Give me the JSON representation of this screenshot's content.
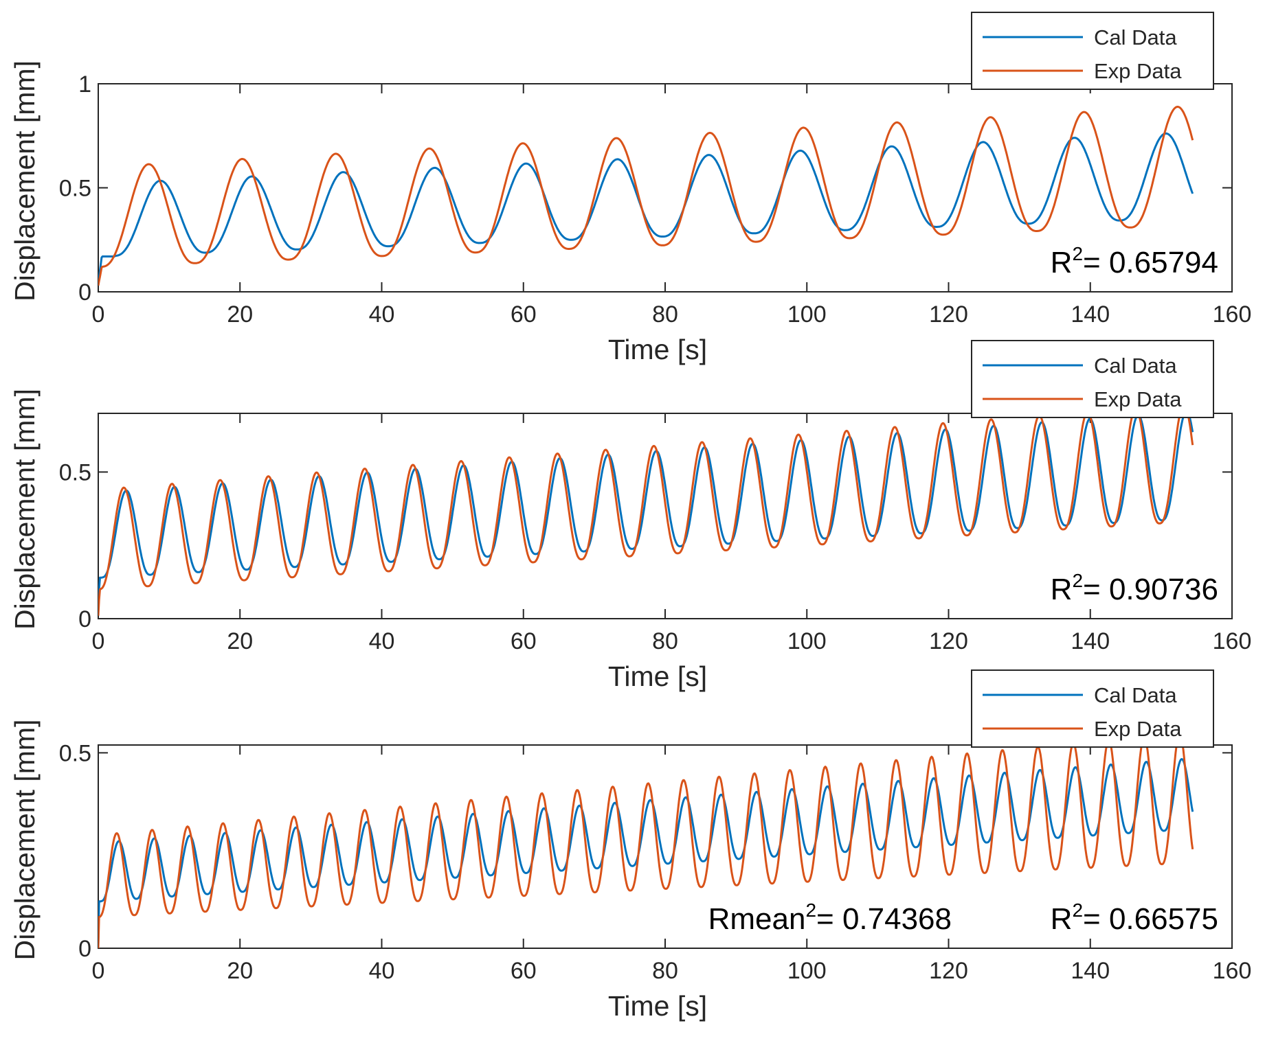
{
  "chart_data": [
    {
      "type": "line",
      "title": "",
      "xlabel": "Time [s]",
      "ylabel": "Displacement [mm]",
      "xlim": [
        0,
        160
      ],
      "ylim": [
        0,
        1
      ],
      "xticks": [
        0,
        20,
        40,
        60,
        80,
        100,
        120,
        140,
        160
      ],
      "xtick_labels": [
        "0",
        "20",
        "40",
        "60",
        "80",
        "100",
        "120",
        "140",
        "160"
      ],
      "yticks": [
        0,
        0.5,
        1
      ],
      "ytick_labels": [
        "0",
        "0.5",
        "1"
      ],
      "legend_location": "top-right, above axes",
      "annotations": [
        {
          "base": "R",
          "sup": "2",
          "rest": "= 0.65794",
          "position": "bottom-right"
        }
      ],
      "series": [
        {
          "name": "Cal Data",
          "color": "#0072BD",
          "period": 12.9,
          "lag": 1.8,
          "t0": 0.5,
          "min_start": 0.17,
          "min_growth": 0.0012,
          "amp_start": 0.35,
          "amp_growth": 0.0004,
          "x_end": 154.5,
          "y_start": 0.04
        },
        {
          "name": "Exp Data",
          "color": "#D95319",
          "period": 13.2,
          "lag": 0,
          "t0": 0.5,
          "min_start": 0.12,
          "min_growth": 0.0013,
          "amp_start": 0.48,
          "amp_growth": 0.0006,
          "x_end": 154.5,
          "y_start": 0.03
        }
      ]
    },
    {
      "type": "line",
      "title": "",
      "xlabel": "Time [s]",
      "ylabel": "Displacement [mm]",
      "xlim": [
        0,
        160
      ],
      "ylim": [
        0,
        0.7
      ],
      "xticks": [
        0,
        20,
        40,
        60,
        80,
        100,
        120,
        140,
        160
      ],
      "xtick_labels": [
        "0",
        "20",
        "40",
        "60",
        "80",
        "100",
        "120",
        "140",
        "160"
      ],
      "yticks": [
        0,
        0.5
      ],
      "ytick_labels": [
        "0",
        "0.5"
      ],
      "legend_location": "top-right, above axes",
      "annotations": [
        {
          "base": "R",
          "sup": "2",
          "rest": "= 0.90736",
          "position": "bottom-right"
        }
      ],
      "series": [
        {
          "name": "Cal Data",
          "color": "#0072BD",
          "period": 6.8,
          "lag": 0.35,
          "t0": 0.2,
          "min_start": 0.14,
          "min_growth": 0.0013,
          "amp_start": 0.29,
          "amp_growth": 0.0005,
          "x_end": 154.5,
          "y_start": 0.04
        },
        {
          "name": "Exp Data",
          "color": "#D95319",
          "period": 6.8,
          "lag": 0,
          "t0": 0.2,
          "min_start": 0.1,
          "min_growth": 0.0015,
          "amp_start": 0.34,
          "amp_growth": 0.0004,
          "x_end": 154.5,
          "y_start": 0.01
        }
      ]
    },
    {
      "type": "line",
      "title": "",
      "xlabel": "Time [s]",
      "ylabel": "Displacement [mm]",
      "xlim": [
        0,
        160
      ],
      "ylim": [
        0,
        0.52
      ],
      "xticks": [
        0,
        20,
        40,
        60,
        80,
        100,
        120,
        140,
        160
      ],
      "xtick_labels": [
        "0",
        "20",
        "40",
        "60",
        "80",
        "100",
        "120",
        "140",
        "160"
      ],
      "yticks": [
        0,
        0.5
      ],
      "ytick_labels": [
        "0",
        "0.5"
      ],
      "legend_location": "top-right, above axes",
      "annotations": [
        {
          "base": "Rmean",
          "sup": "2",
          "rest": "= 0.74368",
          "position": "bottom-center"
        },
        {
          "base": "R",
          "sup": "2",
          "rest": "= 0.66575",
          "position": "bottom-right"
        }
      ],
      "series": [
        {
          "name": "Cal Data",
          "color": "#0072BD",
          "period": 5.0,
          "lag": 0.3,
          "t0": 0.1,
          "min_start": 0.12,
          "min_growth": 0.0012,
          "amp_start": 0.15,
          "amp_growth": 0.0002,
          "x_end": 154.5,
          "y_start": 0.01
        },
        {
          "name": "Exp Data",
          "color": "#D95319",
          "period": 5.0,
          "lag": 0,
          "t0": 0.1,
          "min_start": 0.08,
          "min_growth": 0.0009,
          "amp_start": 0.21,
          "amp_growth": 0.0008,
          "x_end": 154.5,
          "y_start": 0.0
        }
      ]
    }
  ]
}
